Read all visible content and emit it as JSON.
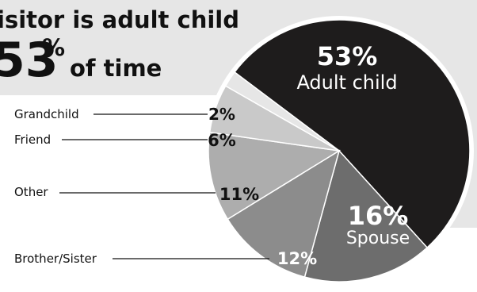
{
  "chart_data": {
    "type": "pie",
    "title_line1": "isitor is adult child",
    "title_big": "53",
    "title_sup": "%",
    "title_line2_rest": "of time",
    "slices": [
      {
        "label": "Adult child",
        "value": 53,
        "pct_label": "53%",
        "color": "#1e1c1c"
      },
      {
        "label": "Spouse",
        "value": 16,
        "pct_label": "16%",
        "color": "#6d6d6d"
      },
      {
        "label": "Brother/Sister",
        "value": 12,
        "pct_label": "12%",
        "color": "#8c8c8c"
      },
      {
        "label": "Other",
        "value": 11,
        "pct_label": "11%",
        "color": "#adadad"
      },
      {
        "label": "Friend",
        "value": 6,
        "pct_label": "6%",
        "color": "#c9c9c9"
      },
      {
        "label": "Grandchild",
        "value": 2,
        "pct_label": "2%",
        "color": "#e6e6e6"
      }
    ],
    "colors": {
      "header_band": "#e6e6e6",
      "text": "#111111",
      "ring": "#ffffff"
    }
  }
}
